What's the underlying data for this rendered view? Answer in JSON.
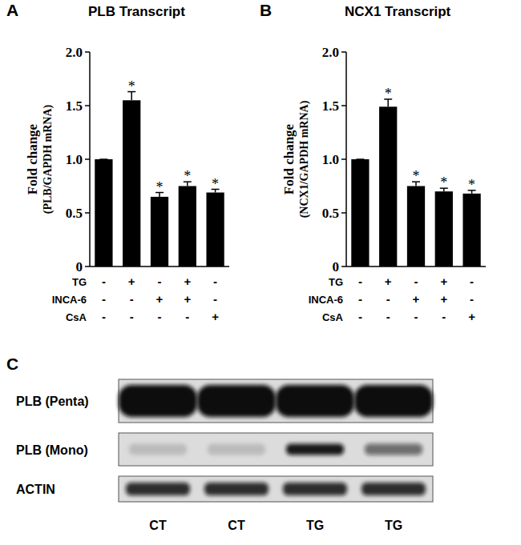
{
  "chart_data": [
    {
      "type": "bar",
      "panel": "A",
      "title": "PLB Transcript",
      "ylabel": [
        "Fold change",
        "(PLB/GAPDH mRNA)"
      ],
      "categories": [
        null,
        null,
        null,
        null,
        null
      ],
      "values": [
        1.0,
        1.55,
        0.65,
        0.75,
        0.69
      ],
      "errors": [
        0,
        0.08,
        0.04,
        0.04,
        0.03
      ],
      "significance": [
        null,
        "*",
        "*",
        "*",
        "*"
      ],
      "treatments": [
        {
          "name": "TG",
          "signs": [
            "-",
            "+",
            "-",
            "+",
            "-"
          ]
        },
        {
          "name": "INCA-6",
          "signs": [
            "-",
            "-",
            "+",
            "+",
            "-"
          ]
        },
        {
          "name": "CsA",
          "signs": [
            "-",
            "-",
            "-",
            "-",
            "+"
          ]
        }
      ],
      "color": "#000000",
      "ylim": [
        0,
        2
      ],
      "yticks": [
        0,
        0.5,
        {
          "value": 1,
          "label": "1.0"
        },
        1.5,
        {
          "value": 2,
          "label": "2.0"
        }
      ]
    },
    {
      "type": "bar",
      "panel": "B",
      "title": "NCX1 Transcript",
      "ylabel": [
        "Fold change",
        "(NCX1/GAPDH mRNA)"
      ],
      "categories": [
        null,
        null,
        null,
        null,
        null
      ],
      "values": [
        1.0,
        1.49,
        0.75,
        0.7,
        0.68
      ],
      "errors": [
        0,
        0.07,
        0.04,
        0.03,
        0.03
      ],
      "significance": [
        null,
        "*",
        "*",
        "*",
        "*"
      ],
      "treatments": [
        {
          "name": "TG",
          "signs": [
            "-",
            "+",
            "-",
            "+",
            "-"
          ]
        },
        {
          "name": "INCA-6",
          "signs": [
            "-",
            "-",
            "+",
            "+",
            "-"
          ]
        },
        {
          "name": "CsA",
          "signs": [
            "-",
            "-",
            "-",
            "-",
            "+"
          ]
        }
      ],
      "color": "#000000",
      "ylim": [
        0,
        2
      ],
      "yticks": [
        0,
        0.5,
        {
          "value": 1,
          "label": "1.0"
        },
        1.5,
        {
          "value": 2,
          "label": "2.0"
        }
      ]
    }
  ],
  "blot": {
    "panel": "C",
    "lanes": [
      "CT",
      "CT",
      "TG",
      "TG"
    ],
    "rows": [
      {
        "label": "PLB (Penta)",
        "intensities": [
          1,
          1,
          1,
          1
        ]
      },
      {
        "label": "PLB (Mono)",
        "intensities": [
          0.15,
          0.15,
          0.95,
          0.55
        ]
      },
      {
        "label": "ACTIN",
        "intensities": [
          0.85,
          0.85,
          0.85,
          0.85
        ]
      }
    ]
  }
}
